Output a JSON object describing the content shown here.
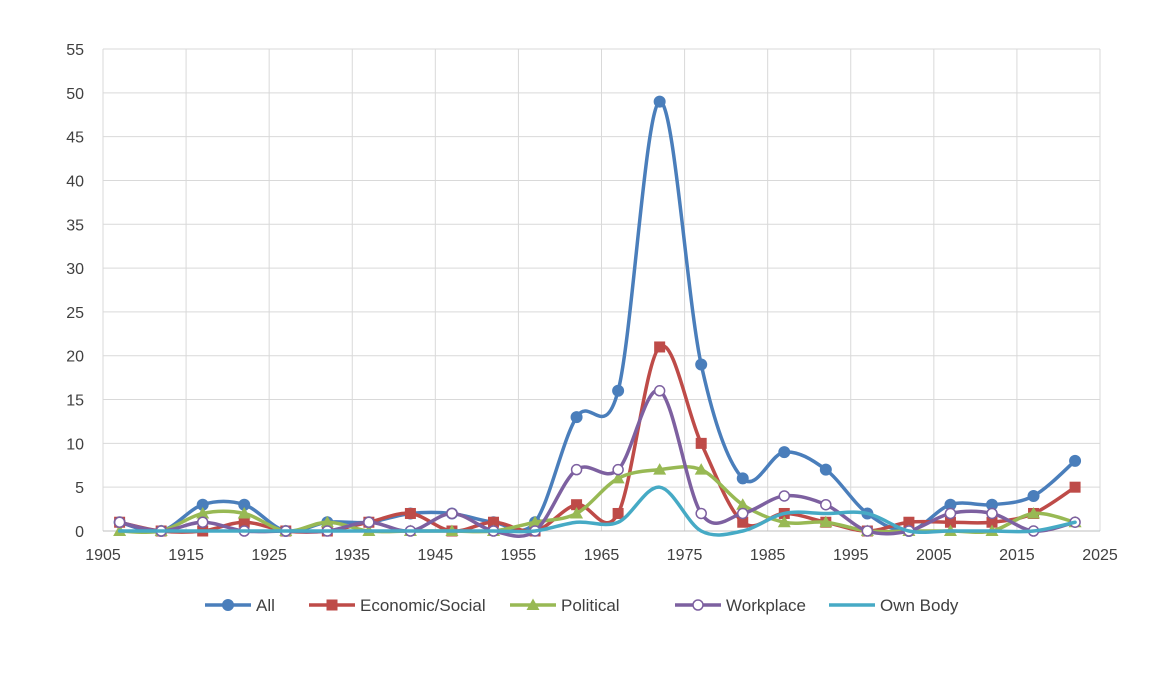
{
  "chart_data": {
    "type": "line",
    "title": "",
    "xlabel": "",
    "ylabel": "",
    "xlim": [
      1905,
      2025
    ],
    "ylim": [
      0,
      55
    ],
    "x_ticks": [
      1905,
      1915,
      1925,
      1935,
      1945,
      1955,
      1965,
      1975,
      1985,
      1995,
      2005,
      2015,
      2025
    ],
    "y_ticks": [
      0,
      5,
      10,
      15,
      20,
      25,
      30,
      35,
      40,
      45,
      50,
      55
    ],
    "grid": true,
    "smooth": true,
    "legend_position": "bottom",
    "x": [
      1907,
      1912,
      1917,
      1922,
      1927,
      1932,
      1937,
      1942,
      1947,
      1952,
      1957,
      1962,
      1967,
      1972,
      1977,
      1982,
      1987,
      1992,
      1997,
      2002,
      2007,
      2012,
      2017,
      2022
    ],
    "series": [
      {
        "name": "All",
        "color": "#4a7ebb",
        "marker": "circle",
        "values": [
          1,
          0,
          3,
          3,
          0,
          1,
          1,
          2,
          2,
          1,
          1,
          13,
          16,
          49,
          19,
          6,
          9,
          7,
          2,
          0,
          3,
          3,
          4,
          8
        ]
      },
      {
        "name": "Economic/Social",
        "color": "#be4b48",
        "marker": "square",
        "values": [
          1,
          0,
          0,
          1,
          0,
          0,
          1,
          2,
          0,
          1,
          0,
          3,
          2,
          21,
          10,
          1,
          2,
          1,
          0,
          1,
          1,
          1,
          2,
          5
        ]
      },
      {
        "name": "Political",
        "color": "#98b954",
        "marker": "triangle",
        "values": [
          0,
          0,
          2,
          2,
          0,
          1,
          0,
          0,
          0,
          0,
          1,
          2,
          6,
          7,
          7,
          3,
          1,
          1,
          0,
          0,
          0,
          0,
          2,
          1
        ]
      },
      {
        "name": "Workplace",
        "color": "#7d60a0",
        "marker": "open-circle",
        "values": [
          1,
          0,
          1,
          0,
          0,
          0,
          1,
          0,
          2,
          0,
          0,
          7,
          7,
          16,
          2,
          2,
          4,
          3,
          0,
          0,
          2,
          2,
          0,
          1
        ]
      },
      {
        "name": "Own Body",
        "color": "#46aac5",
        "marker": "none",
        "values": [
          0,
          0,
          0,
          0,
          0,
          0,
          0,
          0,
          0,
          0,
          0,
          1,
          1,
          5,
          0,
          0,
          2,
          2,
          2,
          0,
          0,
          0,
          0,
          1
        ]
      }
    ]
  }
}
